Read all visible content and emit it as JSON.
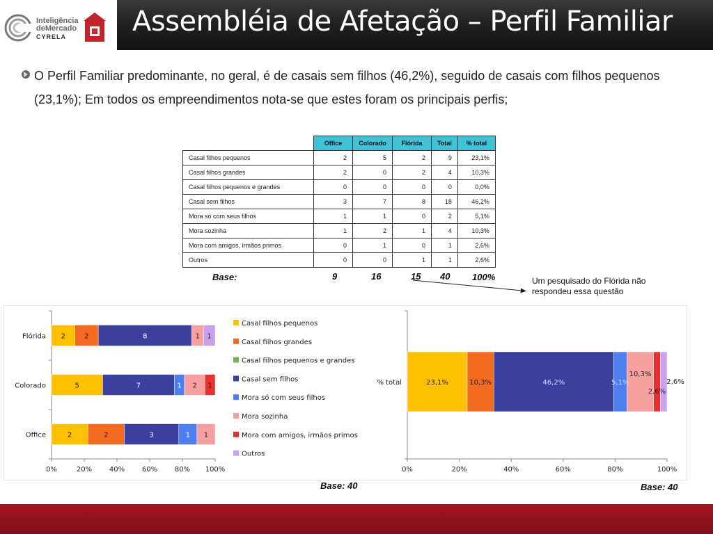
{
  "header": {
    "title": "Assembléia de Afetação – Perfil Familiar",
    "logo": {
      "line1": "Inteligência",
      "line2": "deMercado",
      "line3": "CYRELA"
    }
  },
  "bullet": {
    "text": "O Perfil Familiar predominante, no geral, é de casais sem filhos (46,2%), seguido de casais com filhos pequenos (23,1%); Em todos os empreendimentos nota-se que estes foram os principais perfis;"
  },
  "table": {
    "headers": [
      "Office",
      "Colorado",
      "Flórida",
      "Total",
      "% total"
    ],
    "rows": [
      {
        "label": "Casal filhos pequenos",
        "office": "2",
        "colorado": "5",
        "florida": "2",
        "total": "9",
        "pct": "23,1%"
      },
      {
        "label": "Casal filhos grandes",
        "office": "2",
        "colorado": "0",
        "florida": "2",
        "total": "4",
        "pct": "10,3%"
      },
      {
        "label": "Casal filhos pequenos e grandes",
        "office": "0",
        "colorado": "0",
        "florida": "0",
        "total": "0",
        "pct": "0,0%"
      },
      {
        "label": "Casal sem filhos",
        "office": "3",
        "colorado": "7",
        "florida": "8",
        "total": "18",
        "pct": "46,2%"
      },
      {
        "label": "Mora só com seus filhos",
        "office": "1",
        "colorado": "1",
        "florida": "0",
        "total": "2",
        "pct": "5,1%"
      },
      {
        "label": "Mora sozinha",
        "office": "1",
        "colorado": "2",
        "florida": "1",
        "total": "4",
        "pct": "10,3%"
      },
      {
        "label": "Mora com amigos, irmãos primos",
        "office": "0",
        "colorado": "1",
        "florida": "0",
        "total": "1",
        "pct": "2,6%"
      },
      {
        "label": "Outros",
        "office": "0",
        "colorado": "0",
        "florida": "1",
        "total": "1",
        "pct": "2,6%"
      }
    ],
    "base": {
      "label": "Base:",
      "office": "9",
      "colorado": "16",
      "florida": "15",
      "total": "40",
      "pct": "100%"
    }
  },
  "note": "Um pesquisado do Flórida não respondeu essa questão",
  "chart_bases": {
    "left": "Base: 40",
    "right": "Base: 40"
  },
  "chart_data": [
    {
      "type": "bar",
      "orientation": "horizontal",
      "stacked": "percent",
      "categories": [
        "Office",
        "Colorado",
        "Flórida"
      ],
      "series": [
        {
          "name": "Casal filhos pequenos",
          "color": "#ffc000",
          "values": [
            2,
            5,
            2
          ]
        },
        {
          "name": "Casal filhos grandes",
          "color": "#f26b21",
          "values": [
            2,
            0,
            2
          ]
        },
        {
          "name": "Casal filhos pequenos e grandes",
          "color": "#77b255",
          "values": [
            0,
            0,
            0
          ]
        },
        {
          "name": "Casal sem filhos",
          "color": "#3b3f9e",
          "values": [
            3,
            7,
            8
          ]
        },
        {
          "name": "Mora só com seus filhos",
          "color": "#4d7ff0",
          "values": [
            1,
            1,
            0
          ]
        },
        {
          "name": "Mora sozinha",
          "color": "#f7a0a0",
          "values": [
            1,
            2,
            1
          ]
        },
        {
          "name": "Mora com amigos, irmãos primos",
          "color": "#e8302f",
          "values": [
            0,
            1,
            0
          ]
        },
        {
          "name": "Outros",
          "color": "#c9a2ee",
          "values": [
            0,
            0,
            1
          ]
        }
      ],
      "xticks": [
        "0%",
        "20%",
        "40%",
        "60%",
        "80%",
        "100%"
      ],
      "xlim": [
        0,
        100
      ],
      "legend_position": "right"
    },
    {
      "type": "bar",
      "orientation": "horizontal",
      "stacked": "percent",
      "categories": [
        "% total"
      ],
      "series": [
        {
          "name": "Casal filhos pequenos",
          "color": "#ffc000",
          "values": [
            23.1
          ],
          "label": "23,1%"
        },
        {
          "name": "Casal filhos grandes",
          "color": "#f26b21",
          "values": [
            10.3
          ],
          "label": "10,3%"
        },
        {
          "name": "Casal filhos pequenos e grandes",
          "color": "#77b255",
          "values": [
            0
          ],
          "label": ""
        },
        {
          "name": "Casal sem filhos",
          "color": "#3b3f9e",
          "values": [
            46.2
          ],
          "label": "46,2%"
        },
        {
          "name": "Mora só com seus filhos",
          "color": "#4d7ff0",
          "values": [
            5.1
          ],
          "label": "5,1%"
        },
        {
          "name": "Mora sozinha",
          "color": "#f7a0a0",
          "values": [
            10.3
          ],
          "label": "10,3%"
        },
        {
          "name": "Mora com amigos, irmãos primos",
          "color": "#e8302f",
          "values": [
            2.6
          ],
          "label": "2,6%"
        },
        {
          "name": "Outros",
          "color": "#c9a2ee",
          "values": [
            2.6
          ],
          "label": "2,6%"
        }
      ],
      "xticks": [
        "0%",
        "20%",
        "40%",
        "60%",
        "80%",
        "100%"
      ],
      "xlim": [
        0,
        100
      ]
    }
  ]
}
